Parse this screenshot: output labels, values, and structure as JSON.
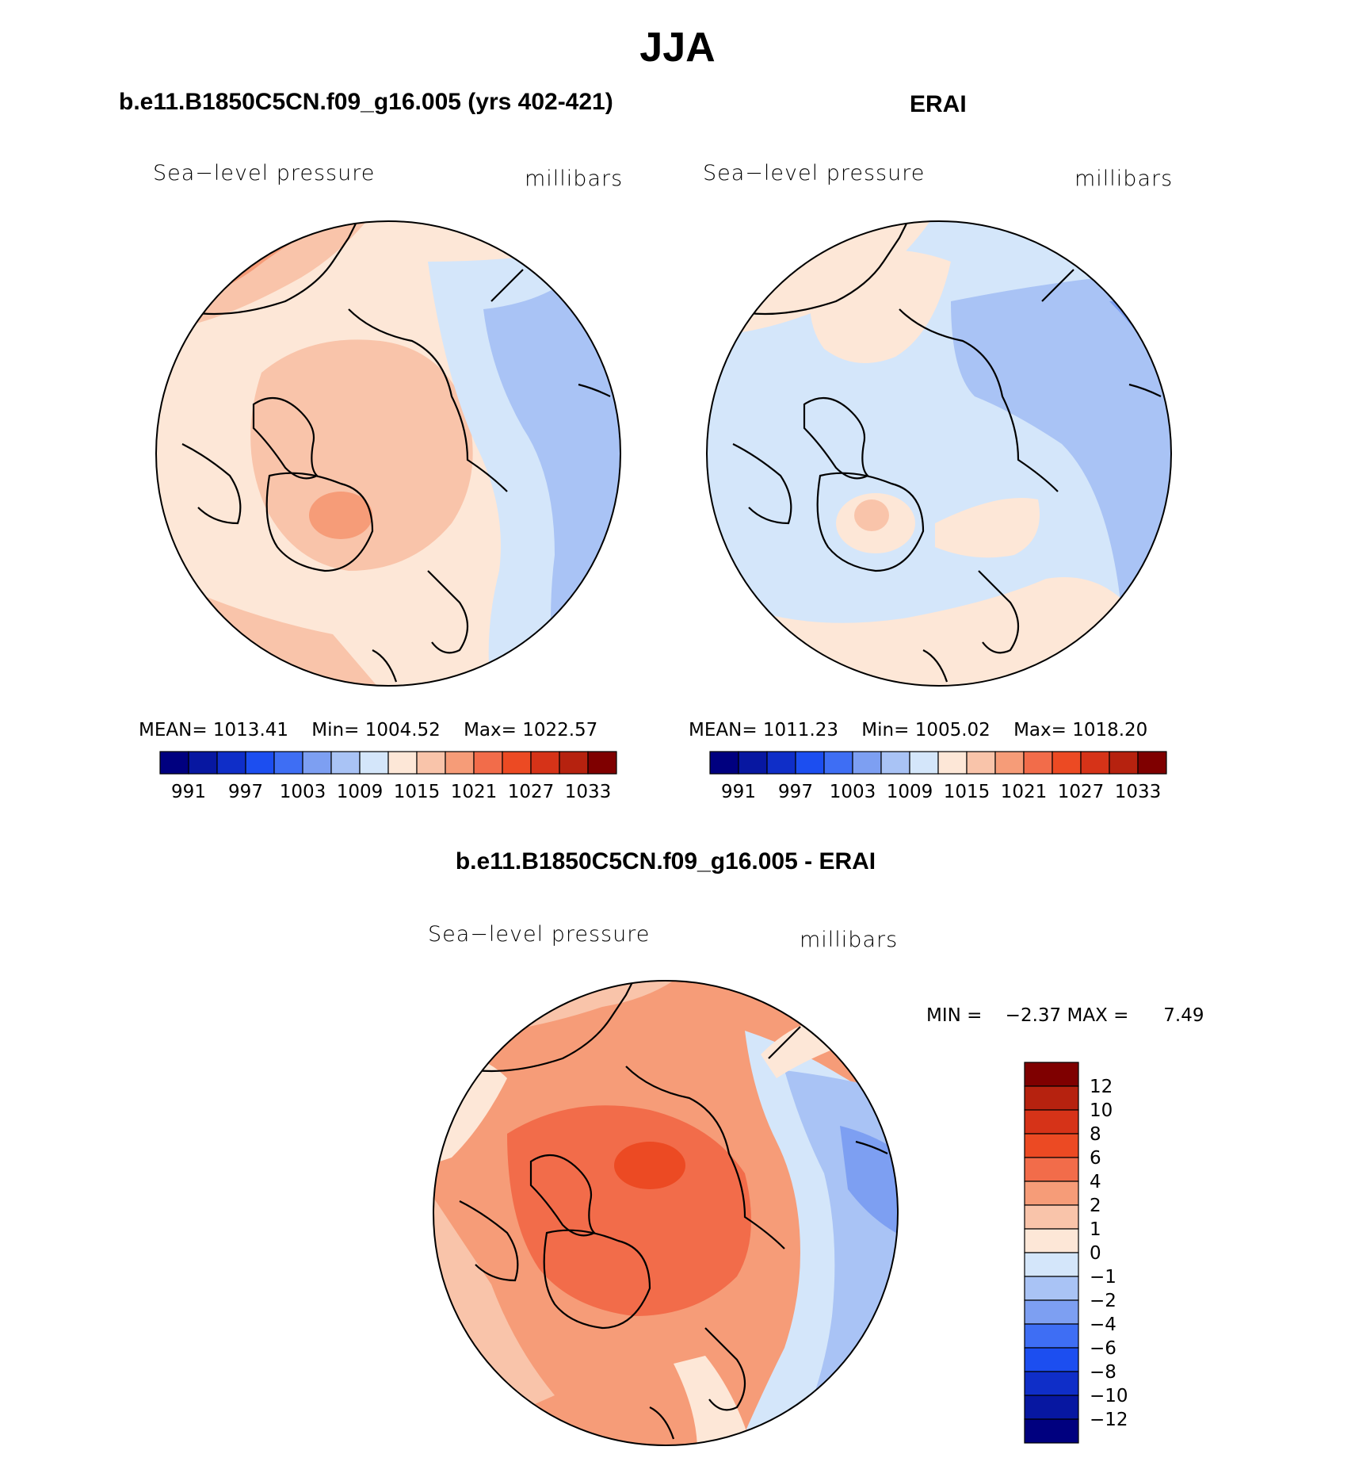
{
  "title": "JJA",
  "colors": {
    "scale": [
      "#00007f",
      "#0717a1",
      "#0f2ec8",
      "#1c4ef0",
      "#3e6ef4",
      "#7d9ff2",
      "#a9c3f5",
      "#d4e6fa",
      "#fde7d7",
      "#f9c4aa",
      "#f69c78",
      "#f26c4a",
      "#ec4a23",
      "#d63318",
      "#b6220f",
      "#7f0000"
    ],
    "coast": "#000000"
  },
  "chart_data": [
    {
      "type": "heatmap",
      "panel": "model",
      "title": "b.e11.B1850C5CN.f09_g16.005 (yrs 402-421)",
      "variable": "Sea−level pressure",
      "units": "millibars",
      "stats": {
        "mean_label": "MEAN=",
        "mean": "1013.41",
        "min_label": "Min=",
        "min": "1004.52",
        "max_label": "Max=",
        "max": "1022.57"
      },
      "colorbar_ticks": [
        "991",
        "997",
        "1003",
        "1009",
        "1015",
        "1021",
        "1027",
        "1033"
      ],
      "colorbar_bins": 16,
      "dominant_levels": [
        1009,
        1015,
        1021
      ]
    },
    {
      "type": "heatmap",
      "panel": "obs",
      "title": "ERAI",
      "variable": "Sea−level pressure",
      "units": "millibars",
      "stats": {
        "mean_label": "MEAN=",
        "mean": "1011.23",
        "min_label": "Min=",
        "min": "1005.02",
        "max_label": "Max=",
        "max": "1018.20"
      },
      "colorbar_ticks": [
        "991",
        "997",
        "1003",
        "1009",
        "1015",
        "1021",
        "1027",
        "1033"
      ],
      "colorbar_bins": 16,
      "dominant_levels": [
        1009,
        1015
      ]
    },
    {
      "type": "heatmap",
      "panel": "difference",
      "title": "b.e11.B1850C5CN.f09_g16.005 - ERAI",
      "variable": "Sea−level pressure",
      "units": "millibars",
      "stats": {
        "min_label": "MIN =",
        "min": "−2.37",
        "max_label": "MAX =",
        "max": "7.49"
      },
      "colorbar_ticks": [
        "12",
        "10",
        "8",
        "6",
        "4",
        "2",
        "1",
        "0",
        "−1",
        "−2",
        "−4",
        "−6",
        "−8",
        "−10",
        "−12"
      ],
      "colorbar_levels": [
        -12,
        -10,
        -8,
        -6,
        -4,
        -2,
        -1,
        0,
        1,
        2,
        4,
        6,
        8,
        10,
        12
      ]
    }
  ]
}
